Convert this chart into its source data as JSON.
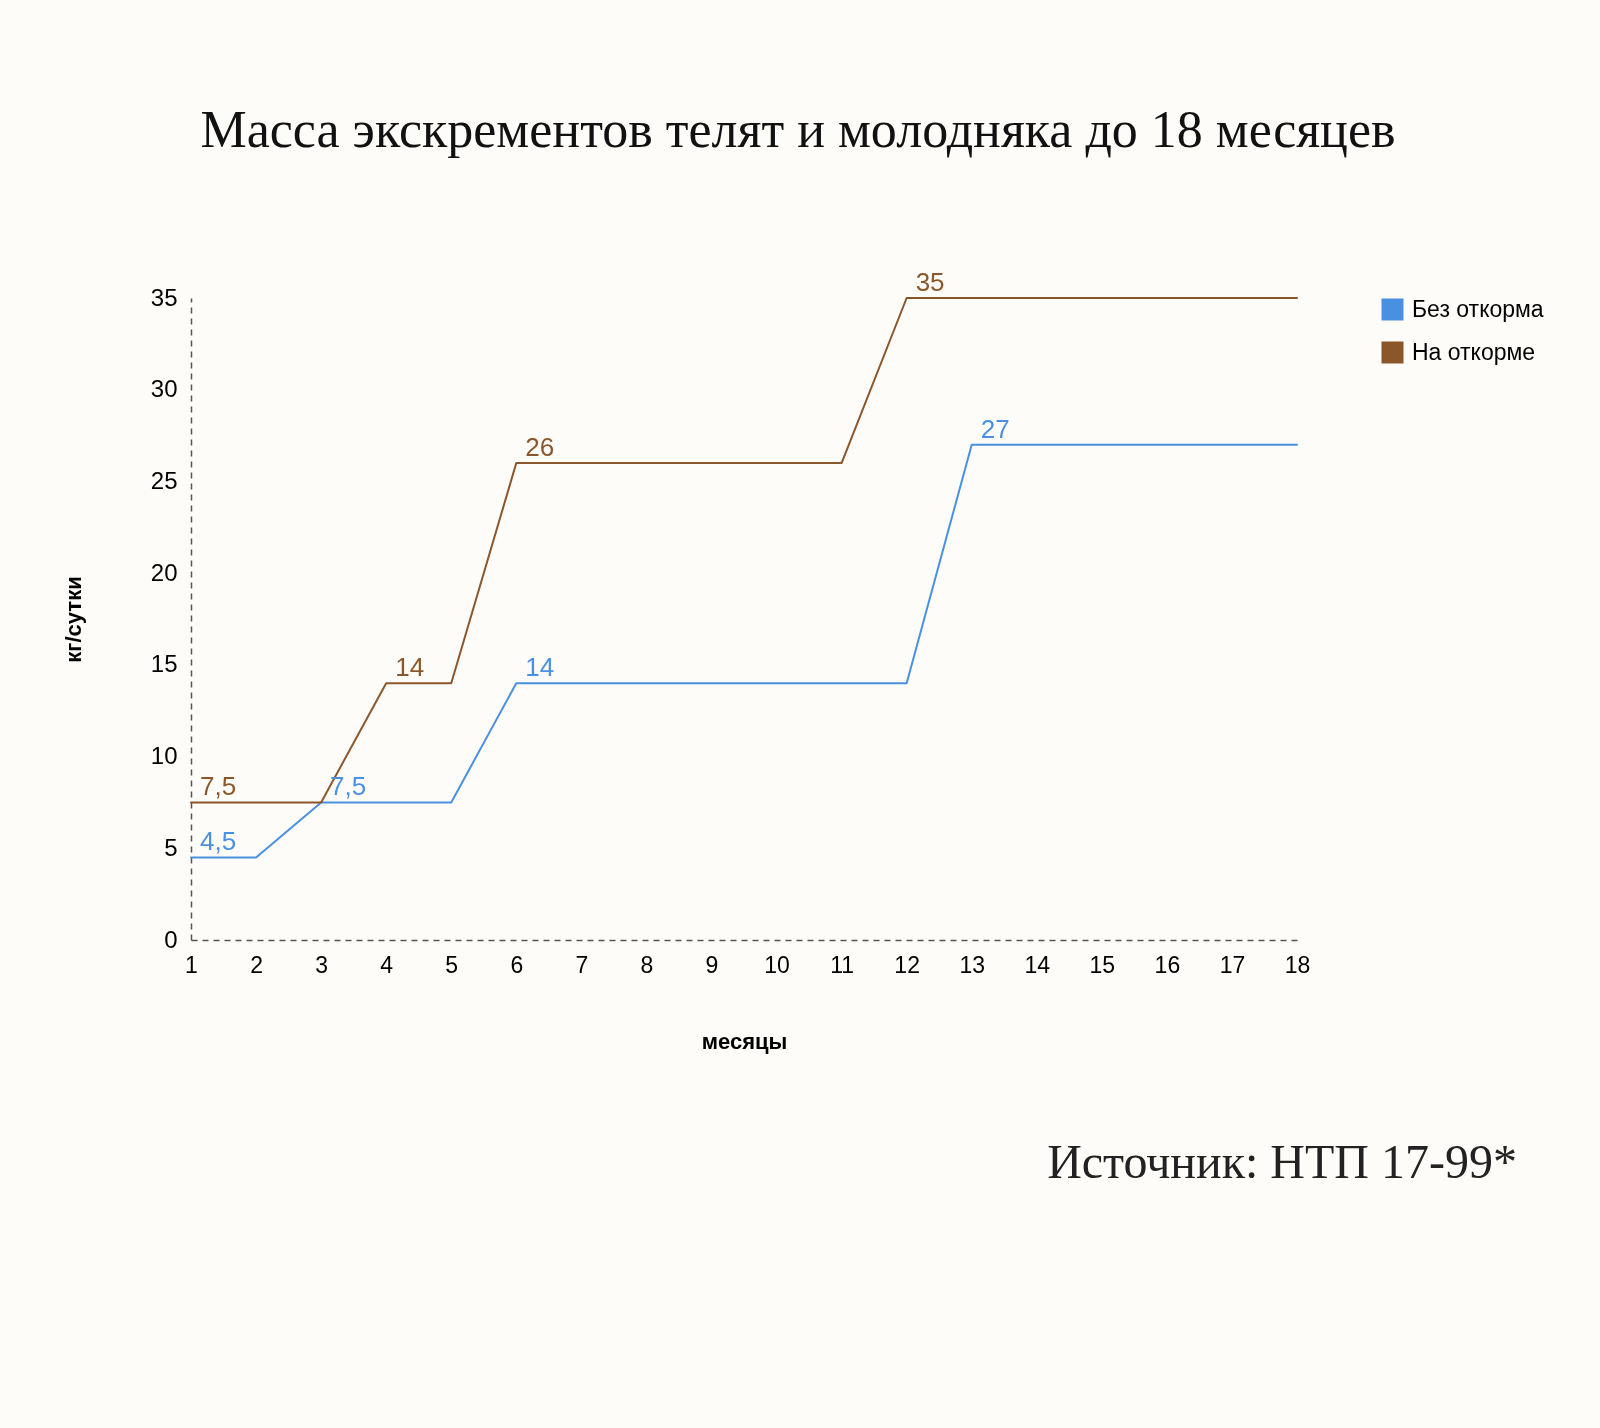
{
  "chart_data": {
    "type": "line",
    "title": "Масса экскрементов телят и молодняка до 18 месяцев",
    "xlabel": "месяцы",
    "ylabel": "кг/сутки",
    "x": [
      1,
      2,
      3,
      4,
      5,
      6,
      7,
      8,
      9,
      10,
      11,
      12,
      13,
      14,
      15,
      16,
      17,
      18
    ],
    "xlim": [
      1,
      18
    ],
    "xticks": [
      1,
      2,
      3,
      4,
      5,
      6,
      7,
      8,
      9,
      10,
      11,
      12,
      13,
      14,
      15,
      16,
      17,
      18
    ],
    "ylim": [
      0,
      35
    ],
    "yticks": [
      0,
      5,
      10,
      15,
      20,
      25,
      30,
      35
    ],
    "series": [
      {
        "name": "Без откорма",
        "color": "#4a90e2",
        "values": [
          4.5,
          4.5,
          7.5,
          7.5,
          7.5,
          14,
          14,
          14,
          14,
          14,
          14,
          14,
          27,
          27,
          27,
          27,
          27,
          27
        ],
        "value_labels": [
          "4,5",
          null,
          "7,5",
          null,
          null,
          "14",
          null,
          null,
          null,
          null,
          null,
          null,
          "27",
          null,
          null,
          null,
          null,
          null
        ]
      },
      {
        "name": "На откорме",
        "color": "#8b572a",
        "values": [
          7.5,
          7.5,
          7.5,
          14,
          14,
          26,
          26,
          26,
          26,
          26,
          26,
          35,
          35,
          35,
          35,
          35,
          35,
          35
        ],
        "value_labels": [
          "7,5",
          null,
          null,
          "14",
          null,
          "26",
          null,
          null,
          null,
          null,
          null,
          "35",
          null,
          null,
          null,
          null,
          null,
          null
        ]
      }
    ],
    "legend": "top right",
    "grid": false,
    "marker": "none",
    "line_style": "solid",
    "annotations": [
      "Источник: НТП 17-99*"
    ]
  }
}
